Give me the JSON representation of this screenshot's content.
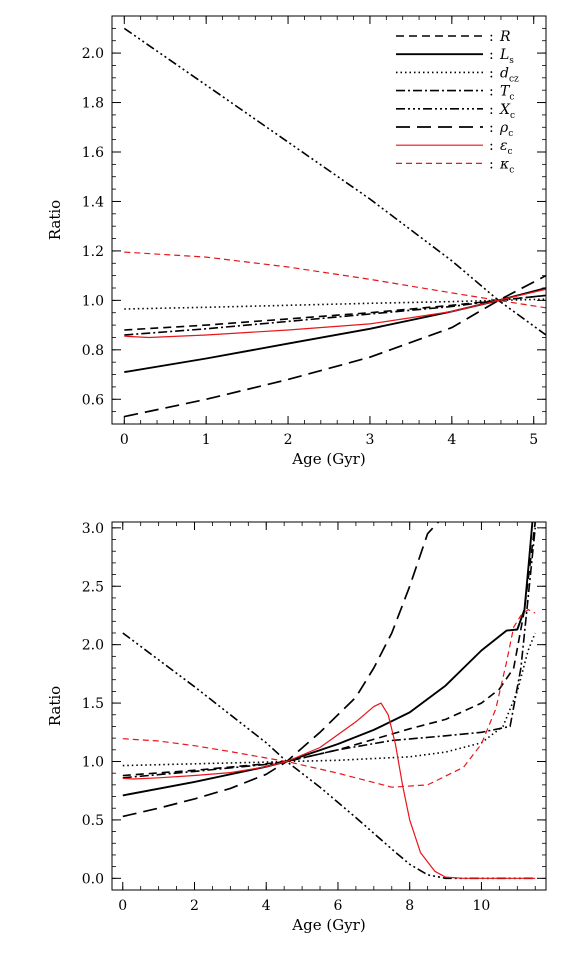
{
  "chart_data": [
    {
      "type": "line",
      "xlabel": "Age (Gyr)",
      "ylabel": "Ratio",
      "xlim": [
        -0.15,
        5.15
      ],
      "ylim": [
        0.5,
        2.15
      ],
      "xticks": [
        0,
        1,
        2,
        3,
        4,
        5
      ],
      "yticks": [
        0.6,
        0.8,
        1.0,
        1.2,
        1.4,
        1.6,
        1.8,
        2.0
      ],
      "ytick_labels": [
        "0.6",
        "0.8",
        "1.0",
        "1.2",
        "1.4",
        "1.6",
        "1.8",
        "2.0"
      ],
      "legend_position": "top-right",
      "series": [
        {
          "name": "R",
          "sub": "",
          "color": "#000000",
          "dash": "8,5",
          "width": 1.6,
          "x": [
            0,
            1,
            2,
            3,
            4,
            4.57,
            5.15
          ],
          "y": [
            0.88,
            0.9,
            0.925,
            0.95,
            0.98,
            1.0,
            1.02
          ]
        },
        {
          "name": "L",
          "sub": "s",
          "color": "#000000",
          "dash": "",
          "width": 1.9,
          "x": [
            0,
            1,
            2,
            3,
            4,
            4.57,
            5.15
          ],
          "y": [
            0.71,
            0.765,
            0.825,
            0.885,
            0.955,
            1.0,
            1.05
          ]
        },
        {
          "name": "d",
          "sub": "cz",
          "color": "#000000",
          "dash": "1.5,3",
          "width": 1.6,
          "x": [
            0,
            1,
            2,
            3,
            4,
            4.57,
            5.15
          ],
          "y": [
            0.965,
            0.972,
            0.98,
            0.988,
            0.995,
            1.0,
            1.005
          ]
        },
        {
          "name": "T",
          "sub": "c",
          "color": "#000000",
          "dash": "9,3,2,3",
          "width": 1.6,
          "x": [
            0,
            1,
            2,
            3,
            4,
            4.57,
            5.15
          ],
          "y": [
            0.86,
            0.885,
            0.915,
            0.945,
            0.975,
            1.0,
            1.02
          ]
        },
        {
          "name": "X",
          "sub": "c",
          "color": "#000000",
          "dash": "9,3,2,3,2,3,2,3",
          "width": 1.6,
          "x": [
            0,
            1,
            2,
            3,
            4,
            4.57,
            5.15
          ],
          "y": [
            2.1,
            1.87,
            1.64,
            1.41,
            1.16,
            1.0,
            0.86
          ]
        },
        {
          "name": "ρ",
          "sub": "c",
          "color": "#000000",
          "dash": "14,7",
          "width": 1.7,
          "x": [
            0,
            1,
            2,
            3,
            4,
            4.57,
            5.15
          ],
          "y": [
            0.53,
            0.6,
            0.68,
            0.77,
            0.89,
            1.0,
            1.1
          ]
        },
        {
          "name": "ε",
          "sub": "c",
          "color": "#e8151b",
          "dash": "",
          "width": 1.2,
          "x": [
            0,
            0.3,
            1,
            2,
            3,
            4,
            4.57,
            5.15
          ],
          "y": [
            0.855,
            0.85,
            0.86,
            0.88,
            0.905,
            0.955,
            1.0,
            1.045
          ]
        },
        {
          "name": "κ",
          "sub": "c",
          "color": "#e8151b",
          "dash": "6,4",
          "width": 1.2,
          "x": [
            0,
            1,
            2,
            3,
            4,
            4.57,
            5.15
          ],
          "y": [
            1.195,
            1.175,
            1.135,
            1.085,
            1.03,
            1.0,
            0.97
          ]
        }
      ]
    },
    {
      "type": "line",
      "xlabel": "Age (Gyr)",
      "ylabel": "Ratio",
      "xlim": [
        -0.3,
        11.8
      ],
      "ylim": [
        -0.1,
        3.05
      ],
      "xticks": [
        0,
        2,
        4,
        6,
        8,
        10
      ],
      "yticks": [
        0.0,
        0.5,
        1.0,
        1.5,
        2.0,
        2.5,
        3.0
      ],
      "ytick_labels": [
        "0.0",
        "0.5",
        "1.0",
        "1.5",
        "2.0",
        "2.5",
        "3.0"
      ],
      "series": [
        {
          "name": "R",
          "color": "#000000",
          "dash": "8,5",
          "width": 1.6,
          "x": [
            0,
            2,
            4,
            4.57,
            6,
            8,
            9,
            10,
            10.5,
            10.9,
            11.2,
            11.5
          ],
          "y": [
            0.88,
            0.925,
            0.98,
            1.0,
            1.1,
            1.28,
            1.36,
            1.5,
            1.62,
            1.8,
            2.3,
            3.05
          ]
        },
        {
          "name": "L",
          "color": "#000000",
          "dash": "",
          "width": 1.9,
          "x": [
            0,
            2,
            4,
            4.57,
            6,
            7,
            8,
            9,
            10,
            10.7,
            11.0,
            11.2,
            11.32,
            11.42
          ],
          "y": [
            0.71,
            0.825,
            0.955,
            1.0,
            1.15,
            1.27,
            1.42,
            1.65,
            1.95,
            2.12,
            2.13,
            2.3,
            2.7,
            3.05
          ]
        },
        {
          "name": "d",
          "color": "#000000",
          "dash": "1.5,3",
          "width": 1.6,
          "x": [
            0,
            2,
            4,
            4.57,
            6,
            8,
            9,
            10,
            10.6,
            11,
            11.3,
            11.5
          ],
          "y": [
            0.965,
            0.98,
            0.995,
            1.0,
            1.01,
            1.04,
            1.08,
            1.16,
            1.3,
            1.6,
            1.95,
            2.1
          ]
        },
        {
          "name": "T",
          "color": "#000000",
          "dash": "9,3,2,3",
          "width": 1.6,
          "x": [
            0,
            2,
            4,
            4.57,
            6,
            7.5,
            9,
            10,
            10.8,
            11.1,
            11.3,
            11.5
          ],
          "y": [
            0.86,
            0.915,
            0.975,
            1.0,
            1.1,
            1.18,
            1.22,
            1.25,
            1.3,
            1.8,
            2.4,
            3.0
          ]
        },
        {
          "name": "X",
          "color": "#000000",
          "dash": "9,3,2,3,2,3,2,3",
          "width": 1.6,
          "x": [
            0,
            2,
            4,
            4.57,
            5.5,
            6.5,
            7.5,
            8,
            8.5,
            9,
            9.5,
            11.5
          ],
          "y": [
            2.1,
            1.64,
            1.16,
            1.0,
            0.78,
            0.52,
            0.25,
            0.12,
            0.03,
            0.0,
            0.0,
            0.0
          ]
        },
        {
          "name": "ρ",
          "color": "#000000",
          "dash": "14,7",
          "width": 1.7,
          "x": [
            0,
            1,
            2,
            3,
            4,
            4.57,
            5.5,
            6.5,
            7,
            7.5,
            8,
            8.5,
            8.8
          ],
          "y": [
            0.53,
            0.6,
            0.68,
            0.77,
            0.89,
            1.0,
            1.25,
            1.55,
            1.8,
            2.1,
            2.5,
            2.95,
            3.05
          ]
        },
        {
          "name": "ε",
          "color": "#e8151b",
          "dash": "",
          "width": 1.2,
          "x": [
            0,
            0.3,
            1,
            2,
            3,
            4,
            4.57,
            5.5,
            6.5,
            7.0,
            7.2,
            7.4,
            7.6,
            7.8,
            8.0,
            8.3,
            8.7,
            9.0,
            9.5,
            11.5
          ],
          "y": [
            0.855,
            0.85,
            0.86,
            0.88,
            0.905,
            0.955,
            1.0,
            1.12,
            1.34,
            1.47,
            1.5,
            1.4,
            1.15,
            0.8,
            0.5,
            0.22,
            0.06,
            0.01,
            0.0,
            0.0
          ]
        },
        {
          "name": "κ",
          "color": "#e8151b",
          "dash": "6,4",
          "width": 1.2,
          "x": [
            0,
            1,
            2,
            3,
            4,
            4.57,
            6,
            7.5,
            8.5,
            9.5,
            10,
            10.4,
            10.7,
            10.9,
            11.1,
            11.3,
            11.5
          ],
          "y": [
            1.195,
            1.175,
            1.135,
            1.085,
            1.03,
            1.0,
            0.9,
            0.78,
            0.8,
            0.95,
            1.15,
            1.45,
            1.85,
            2.15,
            2.25,
            2.3,
            2.27
          ]
        }
      ]
    }
  ]
}
